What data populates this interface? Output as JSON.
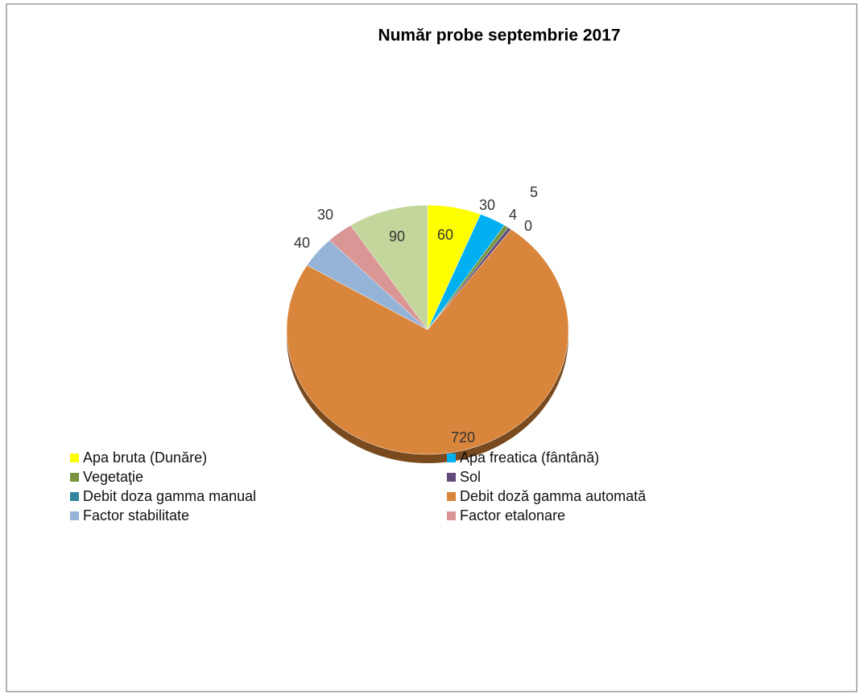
{
  "chart_data": {
    "type": "pie",
    "title": "Număr probe septembrie 2017",
    "categories": [
      "Apa bruta (Dunăre)",
      "Apa freatica (fântână)",
      "Vegetaţie",
      "Sol",
      "Debit  doza gamma manual",
      "Debit doză gamma automată",
      "Factor stabilitate",
      "Factor etalonare",
      null
    ],
    "values": [
      60,
      30,
      5,
      4,
      0,
      720,
      40,
      30,
      90
    ],
    "colors": [
      "#ffff00",
      "#00b0f0",
      "#77933c",
      "#604a7b",
      "#31859c",
      "#d9853b",
      "#95b3d7",
      "#d99694",
      "#c3d69b"
    ],
    "legend": "bottom"
  }
}
